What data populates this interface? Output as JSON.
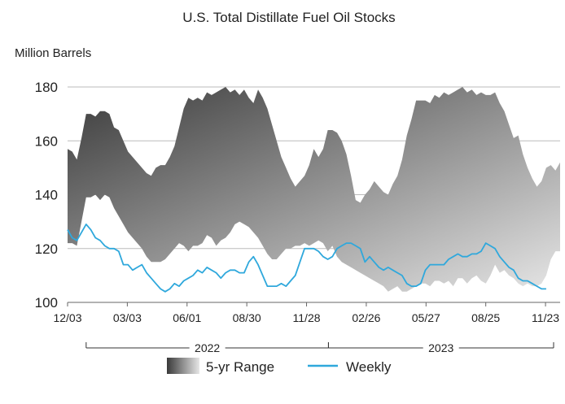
{
  "chart_data": {
    "type": "area",
    "title": "U.S. Total Distillate Fuel Oil Stocks",
    "ylabel": "Million Barrels",
    "ylim": [
      100,
      180
    ],
    "yticks": [
      100,
      120,
      140,
      160,
      180
    ],
    "xlim": [
      "2021-12-03",
      "2023-12-15"
    ],
    "xticks": [
      {
        "date": "2021-12-03",
        "label": "12/03"
      },
      {
        "date": "2022-03-03",
        "label": "03/03"
      },
      {
        "date": "2022-06-01",
        "label": "06/01"
      },
      {
        "date": "2022-08-30",
        "label": "08/30"
      },
      {
        "date": "2022-11-28",
        "label": "11/28"
      },
      {
        "date": "2023-02-26",
        "label": "02/26"
      },
      {
        "date": "2023-05-27",
        "label": "05/27"
      },
      {
        "date": "2023-08-25",
        "label": "08/25"
      },
      {
        "date": "2023-11-23",
        "label": "11/23"
      }
    ],
    "years": [
      {
        "label": "2022",
        "start": "2021-12-31",
        "end": "2022-12-31"
      },
      {
        "label": "2023",
        "start": "2022-12-31",
        "end": "2023-12-15"
      }
    ],
    "grid": true,
    "legend": "bottom-center",
    "colors": {
      "range_dark": "#3a3a3a",
      "range_light": "#e6e6e6",
      "weekly": "#2fa8dc",
      "grid": "#bbbbbb"
    },
    "series": [
      {
        "name": "5-yr Range",
        "kind": "band",
        "x": [
          "2021-12-03",
          "2021-12-10",
          "2021-12-17",
          "2021-12-24",
          "2021-12-31",
          "2022-01-07",
          "2022-01-14",
          "2022-01-21",
          "2022-01-28",
          "2022-02-04",
          "2022-02-11",
          "2022-02-18",
          "2022-02-25",
          "2022-03-04",
          "2022-03-11",
          "2022-03-18",
          "2022-03-25",
          "2022-04-01",
          "2022-04-08",
          "2022-04-15",
          "2022-04-22",
          "2022-04-29",
          "2022-05-06",
          "2022-05-13",
          "2022-05-20",
          "2022-05-27",
          "2022-06-03",
          "2022-06-10",
          "2022-06-17",
          "2022-06-24",
          "2022-07-01",
          "2022-07-08",
          "2022-07-15",
          "2022-07-22",
          "2022-07-29",
          "2022-08-05",
          "2022-08-12",
          "2022-08-19",
          "2022-08-26",
          "2022-09-02",
          "2022-09-09",
          "2022-09-16",
          "2022-09-23",
          "2022-09-30",
          "2022-10-07",
          "2022-10-14",
          "2022-10-21",
          "2022-10-28",
          "2022-11-04",
          "2022-11-11",
          "2022-11-18",
          "2022-11-25",
          "2022-12-02",
          "2022-12-09",
          "2022-12-16",
          "2022-12-23",
          "2022-12-30",
          "2023-01-06",
          "2023-01-13",
          "2023-01-20",
          "2023-01-27",
          "2023-02-03",
          "2023-02-10",
          "2023-02-17",
          "2023-02-24",
          "2023-03-03",
          "2023-03-10",
          "2023-03-17",
          "2023-03-24",
          "2023-03-31",
          "2023-04-07",
          "2023-04-14",
          "2023-04-21",
          "2023-04-28",
          "2023-05-05",
          "2023-05-12",
          "2023-05-19",
          "2023-05-26",
          "2023-06-02",
          "2023-06-09",
          "2023-06-16",
          "2023-06-23",
          "2023-06-30",
          "2023-07-07",
          "2023-07-14",
          "2023-07-21",
          "2023-07-28",
          "2023-08-04",
          "2023-08-11",
          "2023-08-18",
          "2023-08-25",
          "2023-09-01",
          "2023-09-08",
          "2023-09-15",
          "2023-09-22",
          "2023-09-29",
          "2023-10-06",
          "2023-10-13",
          "2023-10-20",
          "2023-10-27",
          "2023-11-03",
          "2023-11-10",
          "2023-11-17",
          "2023-11-24",
          "2023-12-01",
          "2023-12-08",
          "2023-12-15"
        ],
        "high": [
          157,
          156,
          153,
          161,
          170,
          170,
          169,
          171,
          171,
          170,
          165,
          164,
          160,
          156,
          154,
          152,
          150,
          148,
          147,
          150,
          151,
          151,
          154,
          158,
          165,
          172,
          176,
          175,
          176,
          175,
          178,
          177,
          178,
          179,
          180,
          178,
          179,
          177,
          179,
          176,
          174,
          179,
          176,
          172,
          166,
          160,
          154,
          150,
          146,
          143,
          145,
          147,
          151,
          157,
          154,
          157,
          164,
          164,
          163,
          160,
          155,
          147,
          138,
          137,
          140,
          142,
          145,
          143,
          141,
          140,
          144,
          147,
          153,
          162,
          168,
          175,
          175,
          175,
          174,
          177,
          176,
          178,
          177,
          178,
          179,
          180,
          178,
          179,
          177,
          178,
          177,
          177,
          178,
          174,
          171,
          166,
          161,
          162,
          155,
          150,
          146,
          143,
          145,
          150,
          151,
          149,
          152
        ],
        "low": [
          122,
          122,
          121,
          130,
          139,
          139,
          140,
          138,
          140,
          139,
          135,
          132,
          129,
          126,
          124,
          122,
          120,
          117,
          115,
          115,
          115,
          116,
          118,
          120,
          122,
          121,
          119,
          121,
          121,
          122,
          125,
          124,
          121,
          123,
          124,
          126,
          129,
          130,
          129,
          128,
          126,
          124,
          121,
          118,
          116,
          116,
          118,
          120,
          120,
          121,
          121,
          122,
          121,
          122,
          123,
          122,
          119,
          121,
          117,
          115,
          114,
          113,
          112,
          111,
          110,
          109,
          108,
          107,
          106,
          104,
          105,
          106,
          104,
          104,
          105,
          106,
          107,
          107,
          106,
          108,
          108,
          107,
          108,
          106,
          109,
          109,
          107,
          109,
          110,
          108,
          107,
          110,
          114,
          111,
          112,
          110,
          109,
          107,
          106,
          107,
          106,
          106,
          107,
          110,
          116,
          119,
          119
        ]
      },
      {
        "name": "Weekly",
        "kind": "line",
        "x": [
          "2021-12-03",
          "2021-12-10",
          "2021-12-17",
          "2021-12-24",
          "2021-12-31",
          "2022-01-07",
          "2022-01-14",
          "2022-01-21",
          "2022-01-28",
          "2022-02-04",
          "2022-02-11",
          "2022-02-18",
          "2022-02-25",
          "2022-03-04",
          "2022-03-11",
          "2022-03-18",
          "2022-03-25",
          "2022-04-01",
          "2022-04-08",
          "2022-04-15",
          "2022-04-22",
          "2022-04-29",
          "2022-05-06",
          "2022-05-13",
          "2022-05-20",
          "2022-05-27",
          "2022-06-03",
          "2022-06-10",
          "2022-06-17",
          "2022-06-24",
          "2022-07-01",
          "2022-07-08",
          "2022-07-15",
          "2022-07-22",
          "2022-07-29",
          "2022-08-05",
          "2022-08-12",
          "2022-08-19",
          "2022-08-26",
          "2022-09-02",
          "2022-09-09",
          "2022-09-16",
          "2022-09-23",
          "2022-09-30",
          "2022-10-07",
          "2022-10-14",
          "2022-10-21",
          "2022-10-28",
          "2022-11-04",
          "2022-11-11",
          "2022-11-18",
          "2022-11-25",
          "2022-12-02",
          "2022-12-09",
          "2022-12-16",
          "2022-12-23",
          "2022-12-30",
          "2023-01-06",
          "2023-01-13",
          "2023-01-20",
          "2023-01-27",
          "2023-02-03",
          "2023-02-10",
          "2023-02-17",
          "2023-02-24",
          "2023-03-03",
          "2023-03-10",
          "2023-03-17",
          "2023-03-24",
          "2023-03-31",
          "2023-04-07",
          "2023-04-14",
          "2023-04-21",
          "2023-04-28",
          "2023-05-05",
          "2023-05-12",
          "2023-05-19",
          "2023-05-26",
          "2023-06-02",
          "2023-06-09",
          "2023-06-16",
          "2023-06-23",
          "2023-06-30",
          "2023-07-07",
          "2023-07-14",
          "2023-07-21",
          "2023-07-28",
          "2023-08-04",
          "2023-08-11",
          "2023-08-18",
          "2023-08-25",
          "2023-09-01",
          "2023-09-08",
          "2023-09-15",
          "2023-09-22",
          "2023-09-29",
          "2023-10-06",
          "2023-10-13",
          "2023-10-20",
          "2023-10-27",
          "2023-11-03",
          "2023-11-10",
          "2023-11-17",
          "2023-11-24"
        ],
        "values": [
          127,
          124,
          123,
          126,
          129,
          127,
          124,
          123,
          121,
          120,
          120,
          119,
          114,
          114,
          112,
          113,
          114,
          111,
          109,
          107,
          105,
          104,
          105,
          107,
          106,
          108,
          109,
          110,
          112,
          111,
          113,
          112,
          111,
          109,
          111,
          112,
          112,
          111,
          111,
          115,
          117,
          114,
          110,
          106,
          106,
          106,
          107,
          106,
          108,
          110,
          115,
          120,
          120,
          120,
          119,
          117,
          116,
          117,
          120,
          121,
          122,
          122,
          121,
          120,
          115,
          117,
          115,
          113,
          112,
          113,
          112,
          111,
          110,
          107,
          106,
          106,
          107,
          112,
          114,
          114,
          114,
          114,
          116,
          117,
          118,
          117,
          117,
          118,
          118,
          119,
          122,
          121,
          120,
          117,
          115,
          113,
          112,
          109,
          108,
          108,
          107,
          106,
          105,
          105
        ]
      }
    ]
  }
}
